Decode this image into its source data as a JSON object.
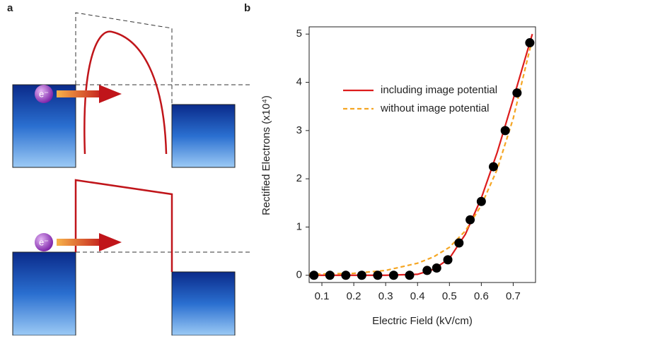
{
  "panel_labels": [
    "a",
    "b"
  ],
  "diagram": {
    "electron_labels": [
      "e⁻",
      "e⁻"
    ]
  },
  "chart_data": {
    "type": "line",
    "xlabel": "Electric Field (kV/cm)",
    "ylabel": "Rectified Electrons (x10⁴)",
    "xlim": [
      0.06,
      0.77
    ],
    "xticks": [
      0.1,
      0.2,
      0.3,
      0.4,
      0.5,
      0.6,
      0.7
    ],
    "ylim": [
      -0.15,
      5.15
    ],
    "yticks": [
      0,
      1,
      2,
      3,
      4,
      5
    ],
    "legend": "upper left",
    "series": [
      {
        "name": "including image potential",
        "color": "#dd1c1c",
        "style": "solid",
        "x": [
          0.06,
          0.3,
          0.4,
          0.45,
          0.5,
          0.55,
          0.6,
          0.65,
          0.7,
          0.76
        ],
        "values": [
          0,
          0,
          0.02,
          0.12,
          0.35,
          0.85,
          1.6,
          2.55,
          3.65,
          5.0
        ]
      },
      {
        "name": "without image potential",
        "color": "#f5a623",
        "style": "dashed",
        "x": [
          0.06,
          0.2,
          0.3,
          0.4,
          0.45,
          0.5,
          0.55,
          0.6,
          0.65,
          0.7,
          0.76
        ],
        "values": [
          0.02,
          0.04,
          0.1,
          0.25,
          0.38,
          0.58,
          0.92,
          1.45,
          2.2,
          3.25,
          4.9
        ]
      }
    ],
    "scatter": {
      "color": "#000000",
      "x": [
        0.075,
        0.125,
        0.175,
        0.225,
        0.275,
        0.325,
        0.375,
        0.43,
        0.46,
        0.495,
        0.53,
        0.565,
        0.6,
        0.638,
        0.675,
        0.712,
        0.752
      ],
      "values": [
        0,
        0,
        0,
        0,
        0,
        0,
        0,
        0.1,
        0.15,
        0.32,
        0.67,
        1.15,
        1.53,
        2.25,
        3.0,
        3.78,
        4.82
      ]
    }
  }
}
